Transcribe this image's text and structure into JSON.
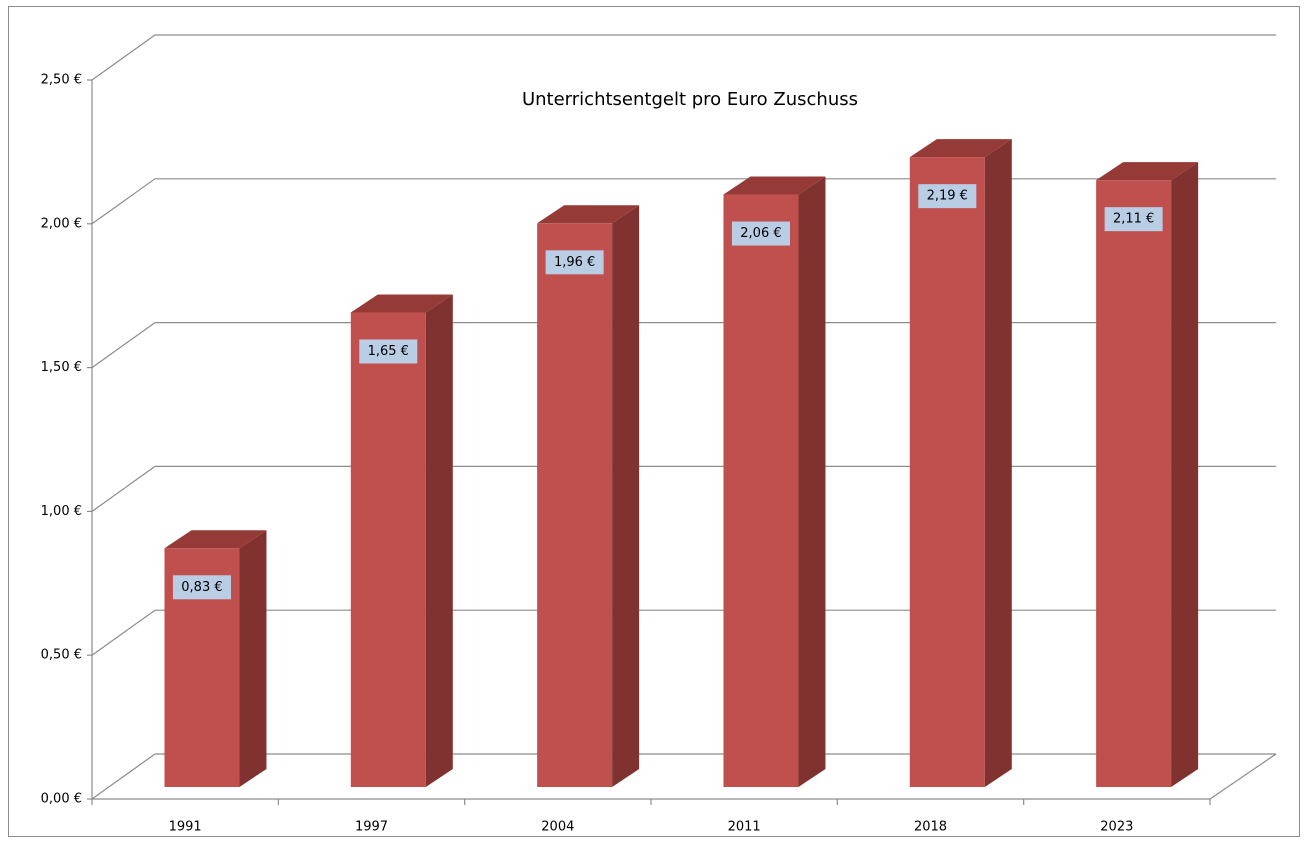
{
  "chart_data": {
    "type": "bar3d",
    "title": "Unterrichtsentgelt pro Euro Zuschuss",
    "categories": [
      "1991",
      "1997",
      "2004",
      "2011",
      "2018",
      "2023"
    ],
    "values": [
      0.83,
      1.65,
      1.96,
      2.06,
      2.19,
      2.11
    ],
    "value_labels": [
      "0,83 €",
      "1,65 €",
      "1,96 €",
      "2,06 €",
      "2,19 €",
      "2,11 €"
    ],
    "color": "#c0504d",
    "ylim": [
      0,
      2.5
    ],
    "yticks": [
      {
        "value": 0,
        "label": "0,00 €"
      },
      {
        "value": 0.5,
        "label": "0,50 €"
      },
      {
        "value": 1,
        "label": "1,00 €"
      },
      {
        "value": 1.5,
        "label": "1,50 €"
      },
      {
        "value": 2,
        "label": "2,00 €"
      },
      {
        "value": 2.5,
        "label": "2,50 €"
      }
    ],
    "grid": true
  }
}
